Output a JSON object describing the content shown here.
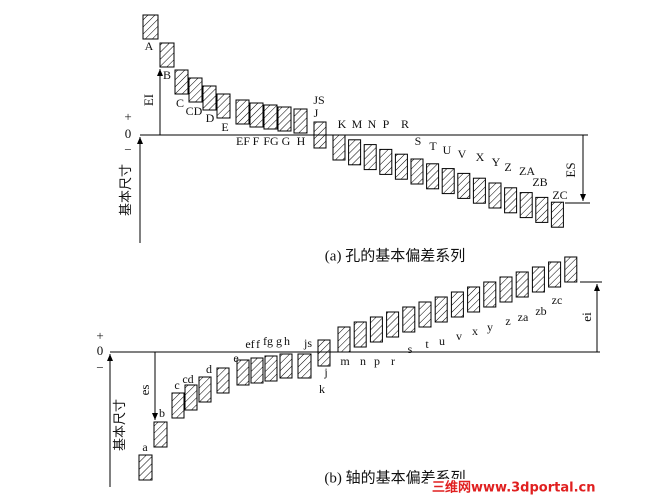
{
  "upper": {
    "plus": "+",
    "zero": "0",
    "minus": "−",
    "basic_size": "基本尺寸",
    "dev_below": "EI",
    "dev_above": "ES",
    "labels": [
      "A",
      "B",
      "C",
      "CD",
      "D",
      "E",
      "EF",
      "F",
      "FG",
      "G",
      "H",
      "JS",
      "J",
      "K",
      "M",
      "N",
      "P",
      "R",
      "S",
      "T",
      "U",
      "V",
      "X",
      "Y",
      "Z",
      "ZA",
      "ZB",
      "ZC"
    ],
    "caption": "(a) 孔的基本偏差系列"
  },
  "lower": {
    "plus": "+",
    "zero": "0",
    "minus": "−",
    "basic_size": "基本尺寸",
    "dev_above": "es",
    "dev_below": "ei",
    "labels": [
      "a",
      "b",
      "c",
      "cd",
      "d",
      "e",
      "ef",
      "f",
      "fg",
      "g",
      "h",
      "js",
      "j",
      "k",
      "m",
      "n",
      "p",
      "r",
      "s",
      "t",
      "u",
      "v",
      "x",
      "y",
      "z",
      "za",
      "zb",
      "zc"
    ],
    "caption": "(b) 轴的基本偏差系列"
  },
  "watermark": "三维网www.3dportal.cn"
}
